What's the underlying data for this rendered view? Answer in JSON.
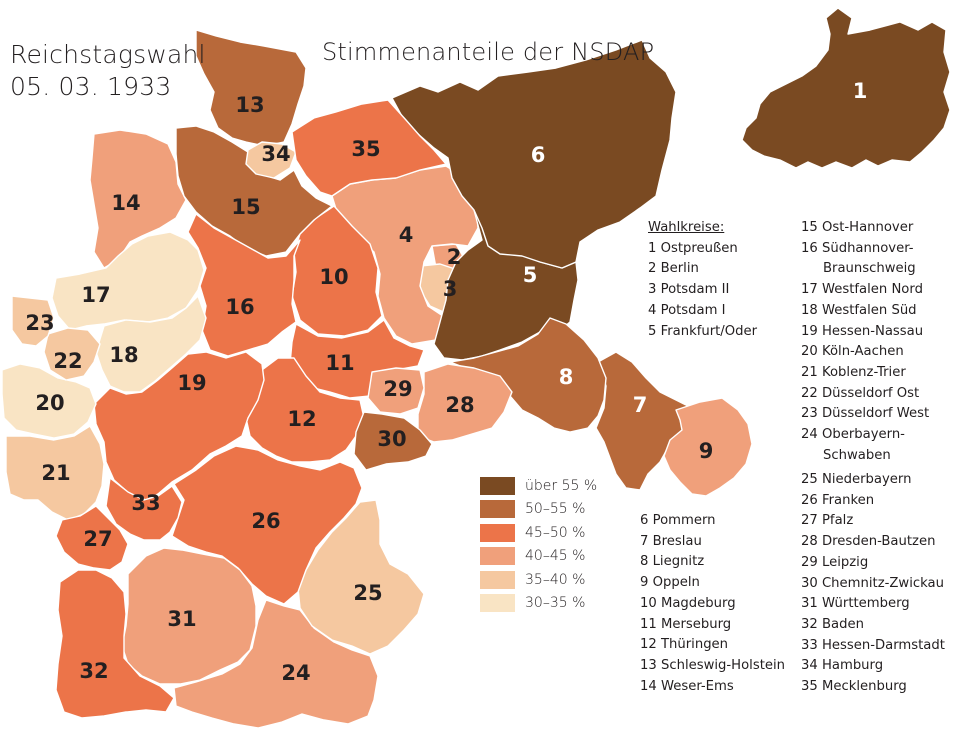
{
  "map": {
    "title": "Reichstagswahl",
    "date": "05. 03. 1933",
    "subtitle": "Stimmenanteile der NSDAP",
    "colors": {
      "c55": "#7a4a22",
      "c50": "#b8693a",
      "c45": "#ec7449",
      "c40": "#f0a07b",
      "c35": "#f5c8a0",
      "c30": "#f9e4c4"
    }
  },
  "legend": {
    "items": [
      {
        "label": "über 55 %",
        "color": "#7a4a22"
      },
      {
        "label": "50–55 %",
        "color": "#b8693a"
      },
      {
        "label": "45–50 %",
        "color": "#ec7449"
      },
      {
        "label": "40–45 %",
        "color": "#f0a07b"
      },
      {
        "label": "35–40 %",
        "color": "#f5c8a0"
      },
      {
        "label": "30–35 %",
        "color": "#f9e4c4"
      }
    ]
  },
  "wahlkreise": {
    "heading": "Wahlkreise:",
    "col_a": [
      "1 Ostpreußen",
      "2 Berlin",
      "3 Potsdam II",
      "4 Potsdam I",
      "5 Frankfurt/Oder"
    ],
    "col_b": [
      "15 Ost-Hannover",
      "16 Südhannover-",
      "Braunschweig",
      "17 Westfalen Nord",
      "18 Westfalen Süd",
      "19 Hessen-Nassau",
      "20 Köln-Aachen",
      "21 Koblenz-Trier",
      "22 Düsseldorf Ost",
      "23 Düsseldorf West",
      "24 Oberbayern-",
      "Schwaben"
    ],
    "col_c": [
      "6 Pommern",
      "7 Breslau",
      "8 Liegnitz",
      "9 Oppeln",
      "10 Magdeburg",
      "11 Merseburg",
      "12 Thüringen",
      "13 Schleswig-Holstein",
      "14 Weser-Ems"
    ],
    "col_d": [
      "25 Niederbayern",
      "26 Franken",
      "27 Pfalz",
      "28 Dresden-Bautzen",
      "29 Leipzig",
      "30 Chemnitz-Zwickau",
      "31 Württemberg",
      "32 Baden",
      "33 Hessen-Darmstadt",
      "34 Hamburg",
      "35 Mecklenburg"
    ]
  },
  "regions": [
    {
      "id": "1",
      "label": "1",
      "range": "über 55 %",
      "color": "#7a4a22"
    },
    {
      "id": "2",
      "label": "2",
      "range": "40–45 %",
      "color": "#f0a07b"
    },
    {
      "id": "3",
      "label": "3",
      "range": "35–40 %",
      "color": "#f5c8a0"
    },
    {
      "id": "4",
      "label": "4",
      "range": "40–45 %",
      "color": "#f0a07b"
    },
    {
      "id": "5",
      "label": "5",
      "range": "über 55 %",
      "color": "#7a4a22"
    },
    {
      "id": "6",
      "label": "6",
      "range": "über 55 %",
      "color": "#7a4a22"
    },
    {
      "id": "7",
      "label": "7",
      "range": "50–55 %",
      "color": "#b8693a"
    },
    {
      "id": "8",
      "label": "8",
      "range": "50–55 %",
      "color": "#b8693a"
    },
    {
      "id": "9",
      "label": "9",
      "range": "40–45 %",
      "color": "#f0a07b"
    },
    {
      "id": "10",
      "label": "10",
      "range": "45–50 %",
      "color": "#ec7449"
    },
    {
      "id": "11",
      "label": "11",
      "range": "45–50 %",
      "color": "#ec7449"
    },
    {
      "id": "12",
      "label": "12",
      "range": "45–50 %",
      "color": "#ec7449"
    },
    {
      "id": "13",
      "label": "13",
      "range": "50–55 %",
      "color": "#b8693a"
    },
    {
      "id": "14",
      "label": "14",
      "range": "40–45 %",
      "color": "#f0a07b"
    },
    {
      "id": "15",
      "label": "15",
      "range": "50–55 %",
      "color": "#b8693a"
    },
    {
      "id": "16",
      "label": "16",
      "range": "45–50 %",
      "color": "#ec7449"
    },
    {
      "id": "17",
      "label": "17",
      "range": "30–35 %",
      "color": "#f9e4c4"
    },
    {
      "id": "18",
      "label": "18",
      "range": "30–35 %",
      "color": "#f9e4c4"
    },
    {
      "id": "19",
      "label": "19",
      "range": "45–50 %",
      "color": "#ec7449"
    },
    {
      "id": "20",
      "label": "20",
      "range": "30–35 %",
      "color": "#f9e4c4"
    },
    {
      "id": "21",
      "label": "21",
      "range": "35–40 %",
      "color": "#f5c8a0"
    },
    {
      "id": "22",
      "label": "22",
      "range": "35–40 %",
      "color": "#f5c8a0"
    },
    {
      "id": "23",
      "label": "23",
      "range": "35–40 %",
      "color": "#f5c8a0"
    },
    {
      "id": "24",
      "label": "24",
      "range": "40–45 %",
      "color": "#f0a07b"
    },
    {
      "id": "25",
      "label": "25",
      "range": "35–40 %",
      "color": "#f5c8a0"
    },
    {
      "id": "26",
      "label": "26",
      "range": "45–50 %",
      "color": "#ec7449"
    },
    {
      "id": "27",
      "label": "27",
      "range": "45–50 %",
      "color": "#ec7449"
    },
    {
      "id": "28",
      "label": "28",
      "range": "40–45 %",
      "color": "#f0a07b"
    },
    {
      "id": "29",
      "label": "29",
      "range": "40–45 %",
      "color": "#f0a07b"
    },
    {
      "id": "30",
      "label": "30",
      "range": "50–55 %",
      "color": "#b8693a"
    },
    {
      "id": "31",
      "label": "31",
      "range": "40–45 %",
      "color": "#f0a07b"
    },
    {
      "id": "32",
      "label": "32",
      "range": "45–50 %",
      "color": "#ec7449"
    },
    {
      "id": "33",
      "label": "33",
      "range": "45–50 %",
      "color": "#ec7449"
    },
    {
      "id": "34",
      "label": "34",
      "range": "35–40 %",
      "color": "#f5c8a0"
    },
    {
      "id": "35",
      "label": "35",
      "range": "45–50 %",
      "color": "#ec7449"
    }
  ]
}
